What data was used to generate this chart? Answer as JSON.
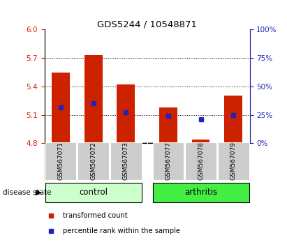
{
  "title": "GDS5244 / 10548871",
  "samples": [
    "GSM567071",
    "GSM567072",
    "GSM567073",
    "GSM567077",
    "GSM567078",
    "GSM567079"
  ],
  "bar_bottoms": [
    4.8,
    4.8,
    4.8,
    4.8,
    4.8,
    4.8
  ],
  "bar_tops": [
    5.55,
    5.73,
    5.42,
    5.18,
    4.84,
    5.3
  ],
  "percentile_values": [
    5.18,
    5.22,
    5.13,
    5.09,
    5.05,
    5.1
  ],
  "ylim_left": [
    4.8,
    6.0
  ],
  "yticks_left": [
    4.8,
    5.1,
    5.4,
    5.7,
    6.0
  ],
  "yticks_right_pct": [
    0,
    25,
    50,
    75,
    100
  ],
  "bar_color": "#cc2200",
  "dot_color": "#2222bb",
  "disease_state_groups": [
    {
      "label": "control",
      "indices": [
        0,
        1,
        2
      ],
      "color": "#ccffcc"
    },
    {
      "label": "arthritis",
      "indices": [
        3,
        4,
        5
      ],
      "color": "#44ee44"
    }
  ],
  "legend_items": [
    {
      "label": "transformed count",
      "color": "#cc2200"
    },
    {
      "label": "percentile rank within the sample",
      "color": "#2222bb"
    }
  ],
  "bar_width": 0.55,
  "left_axis_color": "#cc2200",
  "right_axis_color": "#2222bb",
  "disease_state_label": "disease state",
  "xticklabel_bg": "#cccccc",
  "gap_between_groups": true
}
